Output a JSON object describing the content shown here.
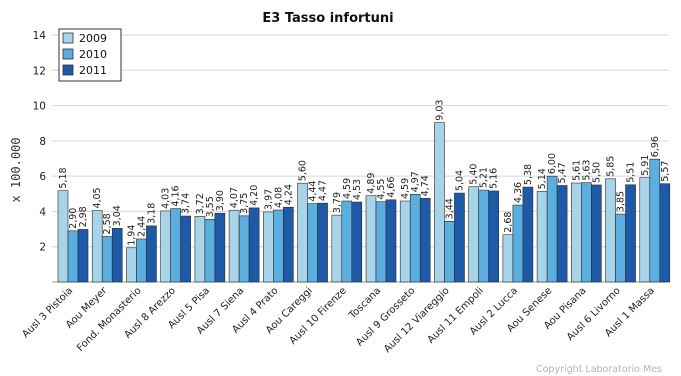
{
  "chart_data": {
    "type": "bar",
    "title": "E3 Tasso infortuni",
    "ylabel": "x 100.000",
    "xlabel": "",
    "ylim": [
      0,
      14
    ],
    "yticks": [
      2,
      4,
      6,
      8,
      10,
      12,
      14
    ],
    "grid": true,
    "legend_position": "top-left",
    "categories": [
      "Ausl 3 Pistoia",
      "Aou Meyer",
      "Fond. Monasterio",
      "Ausl 8 Arezzo",
      "Ausl 5 Pisa",
      "Ausl 7 Siena",
      "Ausl 4 Prato",
      "Aou Careggi",
      "Ausl 10 Firenze",
      "Toscana",
      "Ausl 9 Grosseto",
      "Ausl 12 Viareggio",
      "Ausl 11 Empoli",
      "Ausl 2 Lucca",
      "Aou Senese",
      "Aou Pisana",
      "Ausl 6 Livorno",
      "Ausl 1 Massa"
    ],
    "series": [
      {
        "name": "2009",
        "color": "#a8d4ea",
        "values": [
          5.18,
          4.05,
          1.94,
          4.03,
          3.72,
          4.07,
          3.97,
          5.6,
          3.79,
          4.89,
          4.59,
          9.03,
          5.4,
          2.68,
          5.14,
          5.61,
          5.85,
          5.91
        ],
        "labels": [
          "5,18",
          "4,05",
          "1,94",
          "4,03",
          "3,72",
          "4,07",
          "3,97",
          "5,60",
          "3,79",
          "4,89",
          "4,59",
          "9,03",
          "5,40",
          "2,68",
          "5,14",
          "5,61",
          "5,85",
          "5,91"
        ]
      },
      {
        "name": "2010",
        "color": "#5aaee0",
        "values": [
          2.9,
          2.58,
          2.44,
          4.16,
          3.55,
          3.75,
          4.08,
          4.44,
          4.59,
          4.55,
          4.97,
          3.44,
          5.21,
          4.36,
          6.0,
          5.63,
          3.85,
          6.96
        ],
        "labels": [
          "2,90",
          "2,58",
          "2,44",
          "4,16",
          "3,55",
          "3,75",
          "4,08",
          "4,44",
          "4,59",
          "4,55",
          "4,97",
          "3,44",
          "5,21",
          "4,36",
          "6,00",
          "5,63",
          "3,85",
          "6,96"
        ]
      },
      {
        "name": "2011",
        "color": "#1f5aa8",
        "values": [
          2.98,
          3.04,
          3.18,
          3.74,
          3.9,
          4.2,
          4.24,
          4.47,
          4.53,
          4.66,
          4.74,
          5.04,
          5.16,
          5.38,
          5.47,
          5.5,
          5.51,
          5.57
        ],
        "labels": [
          "2,98",
          "3,04",
          "3,18",
          "3,74",
          "3,90",
          "4,20",
          "4,24",
          "4,47",
          "4,53",
          "4,66",
          "4,74",
          "5,04",
          "5,16",
          "5,38",
          "5,47",
          "5,50",
          "5,51",
          "5,57"
        ]
      }
    ]
  },
  "credit": "Copyright  Laboratorio Mes"
}
